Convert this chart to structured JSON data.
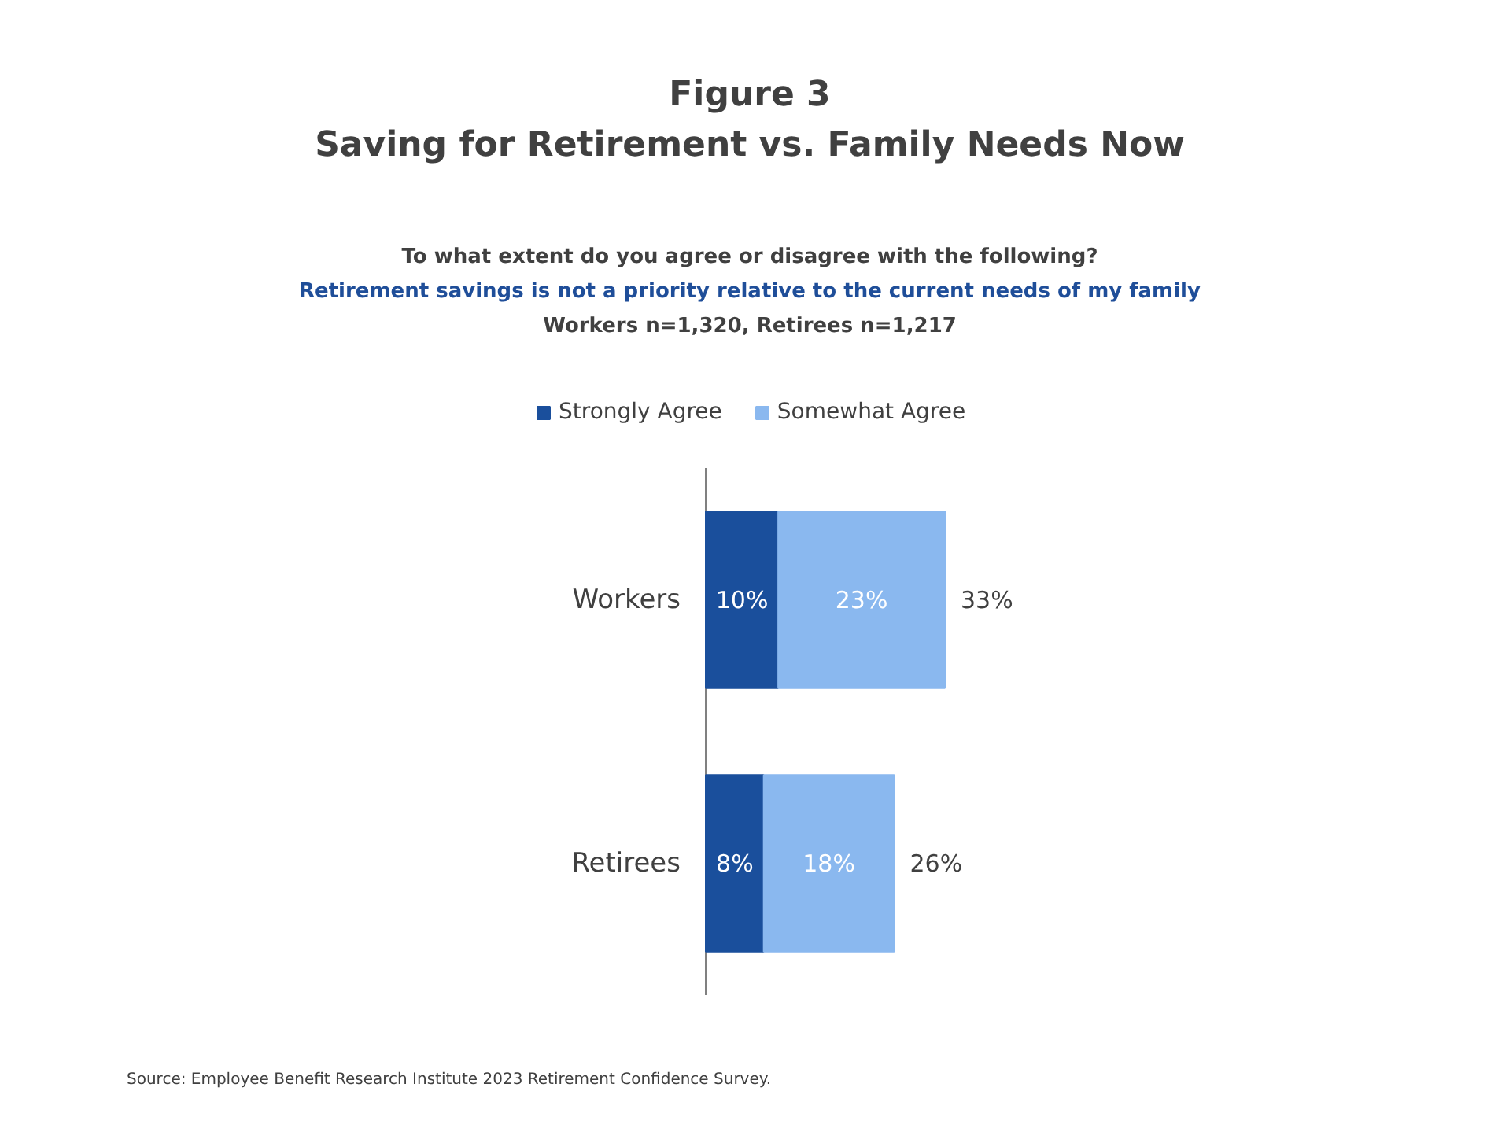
{
  "chart_data": {
    "type": "bar",
    "orientation": "horizontal",
    "stacked": true,
    "title": "Figure 3\nSaving for Retirement vs. Family Needs Now",
    "subtitle": "To what extent do you agree or disagree with the following?\nRetirement savings is not a priority relative to the current needs of my family\nWorkers n=1,320, Retirees n=1,217",
    "categories": [
      "Workers",
      "Retirees"
    ],
    "series": [
      {
        "name": "Strongly Agree",
        "color": "#1a4f9c",
        "values": [
          10,
          8
        ],
        "value_labels": [
          "10%",
          "8%"
        ]
      },
      {
        "name": "Somewhat Agree",
        "color": "#8ab8ef",
        "values": [
          23,
          18
        ],
        "value_labels": [
          "23%",
          "18%"
        ]
      }
    ],
    "totals": [
      "33%",
      "26%"
    ],
    "tick_labels": "y",
    "legend": "top",
    "grid": false,
    "annotations": [
      "Source: Employee Benefit Research Institute 2023 Retirement Confidence Survey."
    ]
  }
}
